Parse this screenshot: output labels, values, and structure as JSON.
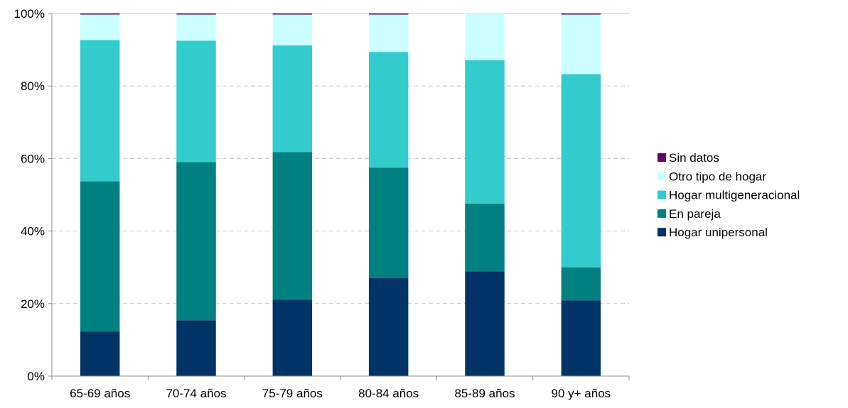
{
  "chart_data": {
    "type": "bar",
    "stacked": true,
    "categories": [
      "65-69 años",
      "70-74 años",
      "75-79 años",
      "80-84 años",
      "85-89 años",
      "90 y+ años"
    ],
    "series": [
      {
        "name": "Hogar  unipersonal",
        "color": "#003366",
        "values": [
          12.3,
          15.4,
          21.1,
          27.0,
          28.9,
          20.9
        ]
      },
      {
        "name": "En pareja",
        "color": "#008080",
        "values": [
          41.4,
          43.6,
          40.7,
          30.5,
          18.7,
          9.1
        ]
      },
      {
        "name": "Hogar  multigeneracional",
        "color": "#33CCCC",
        "values": [
          39.0,
          33.5,
          29.4,
          31.9,
          39.5,
          53.3
        ]
      },
      {
        "name": "Otro tipo de hogar",
        "color": "#CCFFFF",
        "values": [
          7.0,
          7.2,
          8.5,
          10.3,
          12.9,
          16.4
        ]
      },
      {
        "name": "Sin datos",
        "color": "#660066",
        "values": [
          0.3,
          0.3,
          0.3,
          0.3,
          0.0,
          0.3
        ]
      }
    ],
    "yticks": [
      "0%",
      "20%",
      "40%",
      "60%",
      "80%",
      "100%"
    ],
    "ylim": [
      0,
      100
    ],
    "grid": true,
    "legend_position": "right"
  }
}
